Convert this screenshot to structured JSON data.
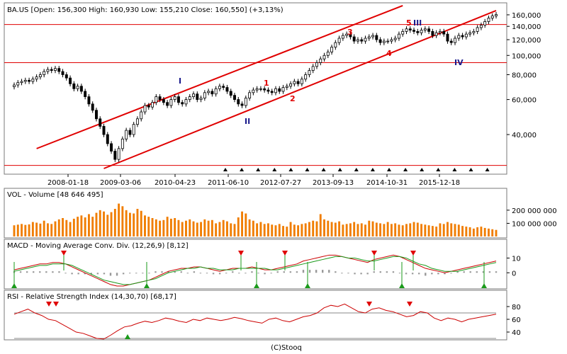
{
  "header": {
    "symbol": "BA.US",
    "quote_text": "BA.US [Open: 156,300  High: 160,930  Low: 155,210  Close: 160,550] (+3,13%)"
  },
  "footer": {
    "credit": "(C)Stooq"
  },
  "colors": {
    "up_candle": "#ffffff",
    "down_candle": "#000000",
    "trend_line": "#e00000",
    "volume_bar": "#f07d00",
    "macd_line": "#cc0000",
    "signal_line": "#1a9a1a",
    "histogram": "#999999",
    "buy_marker": "#1a9a1a",
    "sell_marker": "#e00000",
    "rsi_line": "#cc0000",
    "blue_label": "#1a1a8c"
  },
  "chart_data": [
    {
      "type": "candlestick",
      "title": "BA.US [Open: 156,300  High: 160,930  Low: 155,210  Close: 160,550] (+3,13%)",
      "y_scale": "log",
      "ylim": [
        27000,
        175000
      ],
      "x_tick_labels": [
        "2008-01-18",
        "2009-03-06",
        "2010-04-23",
        "2011-06-10",
        "2012-07-27",
        "2013-09-13",
        "2014-10-31",
        "2015-12-18"
      ],
      "y_tick_labels": [
        "160,000",
        "140,000",
        "120,000",
        "100,000",
        "80,000",
        "60,000",
        "40,000"
      ],
      "y_ticks": [
        160000,
        140000,
        120000,
        100000,
        80000,
        60000,
        40000
      ],
      "x_positions_note": "index 0..170 weekly-ish bars",
      "closes": [
        71,
        73,
        74,
        75,
        74,
        76,
        78,
        80,
        83,
        85,
        84,
        86,
        83,
        80,
        77,
        72,
        68,
        70,
        66,
        62,
        57,
        53,
        48,
        44,
        40,
        36,
        33,
        30,
        34,
        38,
        42,
        40,
        45,
        48,
        52,
        56,
        55,
        58,
        62,
        60,
        58,
        56,
        60,
        62,
        58,
        57,
        60,
        62,
        64,
        60,
        61,
        65,
        66,
        64,
        68,
        70,
        69,
        66,
        63,
        60,
        57,
        56,
        61,
        65,
        67,
        68,
        68,
        67,
        66,
        65,
        68,
        66,
        69,
        70,
        72,
        74,
        72,
        76,
        80,
        84,
        88,
        92,
        96,
        100,
        104,
        110,
        116,
        122,
        126,
        128,
        124,
        118,
        120,
        118,
        122,
        124,
        126,
        120,
        116,
        118,
        118,
        120,
        122,
        128,
        132,
        136,
        134,
        132,
        130,
        134,
        136,
        132,
        126,
        130,
        132,
        128,
        118,
        116,
        122,
        126,
        124,
        128,
        130,
        132,
        138,
        142,
        148,
        154,
        158,
        160.5
      ],
      "horizontal_lines": [
        143000,
        92000,
        28000
      ],
      "channel_lines": [
        {
          "from_index": 6,
          "from_value": 34000,
          "to_index": 104,
          "to_value": 178000
        },
        {
          "from_index": 24,
          "from_value": 27000,
          "to_index": 129,
          "to_value": 168000
        }
      ],
      "wave_labels": [
        {
          "text": "I",
          "color": "blue"
        },
        {
          "text": "II",
          "color": "blue"
        },
        {
          "text": "1",
          "color": "red"
        },
        {
          "text": "2",
          "color": "red"
        },
        {
          "text": "3",
          "color": "red"
        },
        {
          "text": "4",
          "color": "red"
        },
        {
          "text": "5",
          "color": "red"
        },
        {
          "text": "III",
          "color": "blue"
        },
        {
          "text": "IV",
          "color": "blue"
        }
      ],
      "bottom_markers_count": 17
    },
    {
      "type": "bar",
      "title": "VOL - Volume [48 646 495]",
      "y_tick_labels": [
        "200 000 000",
        "100 000 000"
      ],
      "y_ticks": [
        200000000,
        100000000
      ],
      "ylim": [
        0,
        280000000
      ],
      "values": [
        85,
        90,
        95,
        88,
        92,
        110,
        105,
        98,
        120,
        100,
        95,
        115,
        130,
        140,
        125,
        110,
        135,
        150,
        160,
        145,
        170,
        150,
        180,
        200,
        190,
        165,
        185,
        210,
        250,
        230,
        200,
        180,
        175,
        210,
        195,
        160,
        150,
        140,
        130,
        120,
        125,
        150,
        135,
        140,
        125,
        110,
        120,
        130,
        115,
        105,
        110,
        130,
        120,
        125,
        100,
        110,
        125,
        115,
        100,
        95,
        145,
        190,
        175,
        130,
        120,
        100,
        110,
        95,
        100,
        90,
        85,
        95,
        80,
        75,
        110,
        90,
        85,
        95,
        100,
        110,
        120,
        115,
        170,
        130,
        120,
        110,
        105,
        115,
        90,
        95,
        100,
        110,
        95,
        100,
        90,
        120,
        115,
        105,
        100,
        95,
        110,
        95,
        100,
        90,
        85,
        95,
        100,
        110,
        105,
        95,
        90,
        85,
        80,
        75,
        100,
        95,
        110,
        100,
        95,
        90,
        80,
        75,
        70,
        60,
        70,
        75,
        65,
        60,
        55,
        50
      ]
    },
    {
      "type": "line",
      "title": "MACD - Moving Average Conv. Div. (12,26,9) [8,12]",
      "y_tick_labels": [
        "10",
        "0"
      ],
      "y_ticks": [
        10,
        0
      ],
      "ylim": [
        -9,
        16
      ],
      "series": [
        {
          "name": "MACD",
          "values": [
            2,
            3,
            4,
            5,
            6,
            6,
            7,
            7,
            6,
            4,
            2,
            0,
            -2,
            -4,
            -6,
            -8,
            -9,
            -9,
            -8,
            -7,
            -6,
            -5,
            -3,
            -1,
            1,
            2,
            3,
            3,
            4,
            4,
            3,
            2,
            1,
            2,
            3,
            3,
            3,
            4,
            3,
            2,
            2,
            3,
            4,
            5,
            6,
            8,
            9,
            10,
            11,
            12,
            12,
            11,
            10,
            9,
            8,
            7,
            9,
            10,
            11,
            12,
            11,
            9,
            7,
            5,
            3,
            2,
            1,
            0,
            1,
            2,
            3,
            4,
            5,
            6,
            7,
            8
          ]
        },
        {
          "name": "Signal",
          "values": [
            1,
            2,
            3,
            4,
            5,
            5,
            6,
            6,
            6,
            5,
            3,
            1,
            -1,
            -3,
            -5,
            -6,
            -7,
            -8,
            -8,
            -7,
            -6,
            -5,
            -4,
            -2,
            0,
            1,
            2,
            3,
            3,
            4,
            3,
            3,
            2,
            2,
            2,
            3,
            3,
            3,
            3,
            3,
            2,
            2,
            3,
            4,
            5,
            6,
            7,
            8,
            9,
            10,
            11,
            11,
            10,
            10,
            9,
            8,
            8,
            9,
            10,
            11,
            11,
            10,
            8,
            6,
            5,
            3,
            2,
            1,
            1,
            1,
            2,
            3,
            4,
            5,
            6,
            7
          ]
        }
      ],
      "histogram": [
        1,
        1,
        1,
        1,
        1,
        1,
        1,
        1,
        0,
        -1,
        -1,
        -1,
        -1,
        -1,
        -1,
        -2,
        -2,
        -1,
        0,
        0,
        0,
        0,
        1,
        1,
        1,
        1,
        1,
        0,
        1,
        0,
        0,
        -1,
        -1,
        0,
        1,
        0,
        0,
        1,
        0,
        -1,
        0,
        1,
        1,
        1,
        1,
        2,
        2,
        2,
        2,
        2,
        1,
        0,
        0,
        -1,
        -1,
        -1,
        1,
        1,
        1,
        1,
        0,
        -1,
        -1,
        -1,
        -2,
        -1,
        -1,
        -1,
        0,
        1,
        1,
        1,
        1,
        1,
        1,
        1
      ],
      "sell_markers": 5,
      "buy_markers": 6
    },
    {
      "type": "line",
      "title": "RSI - Relative Strength Index (14,30,70) [68,17]",
      "y_tick_labels": [
        "80",
        "60",
        "40"
      ],
      "y_ticks": [
        80,
        60,
        40
      ],
      "ylim": [
        30,
        90
      ],
      "reference_lines": [
        70,
        30
      ],
      "series": [
        {
          "name": "RSI",
          "values": [
            68,
            72,
            76,
            70,
            66,
            60,
            58,
            52,
            46,
            40,
            38,
            34,
            30,
            29,
            35,
            42,
            48,
            50,
            54,
            57,
            55,
            58,
            62,
            60,
            57,
            55,
            60,
            58,
            62,
            60,
            58,
            60,
            63,
            61,
            58,
            56,
            54,
            60,
            62,
            58,
            56,
            60,
            64,
            66,
            70,
            78,
            82,
            80,
            84,
            78,
            72,
            70,
            76,
            78,
            74,
            72,
            68,
            64,
            66,
            72,
            70,
            62,
            58,
            62,
            60,
            56,
            60,
            62,
            64,
            66,
            68
          ]
        }
      ],
      "sell_markers": 4,
      "buy_markers": 1
    }
  ]
}
